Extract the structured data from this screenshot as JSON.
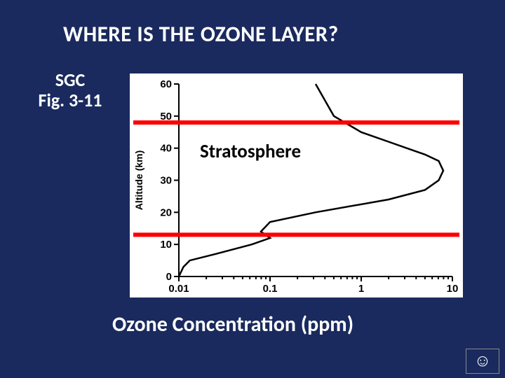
{
  "background_color": "#1a2a5e",
  "title": "WHERE IS THE OZONE LAYER?",
  "title_fontsize": 31,
  "caption": "SGC\nFig. 3-11",
  "caption_fontsize": 26,
  "subtitle": "Ozone Concentration (ppm)",
  "subtitle_fontsize": 30,
  "smiley": "☺",
  "smiley_box_border": "#888888",
  "chart": {
    "type": "line",
    "background_color": "#ffffff",
    "curve_color": "#000000",
    "curve_width": 2.5,
    "axis_color": "#000000",
    "axis_width": 2,
    "x_axis": {
      "scale": "log",
      "min": 0.01,
      "max": 10,
      "ticks": [
        0.01,
        0.1,
        1,
        10
      ],
      "tick_labels": [
        "0.01",
        "0.1",
        "1",
        "10"
      ]
    },
    "y_axis": {
      "label": "Altitude (km)",
      "label_fontsize": 14,
      "scale": "linear",
      "min": 0,
      "max": 60,
      "ticks": [
        0,
        10,
        20,
        30,
        40,
        50,
        60
      ],
      "tick_labels": [
        "0",
        "10",
        "20",
        "30",
        "40",
        "50",
        "60"
      ]
    },
    "curve_points": [
      {
        "x_log": -2.0,
        "y": 0
      },
      {
        "x_log": -1.95,
        "y": 3
      },
      {
        "x_log": -1.88,
        "y": 5
      },
      {
        "x_log": -1.6,
        "y": 7
      },
      {
        "x_log": -1.2,
        "y": 10
      },
      {
        "x_log": -1.0,
        "y": 12
      },
      {
        "x_log": -1.1,
        "y": 14
      },
      {
        "x_log": -1.0,
        "y": 17
      },
      {
        "x_log": -0.5,
        "y": 20
      },
      {
        "x_log": 0.3,
        "y": 24
      },
      {
        "x_log": 0.7,
        "y": 27
      },
      {
        "x_log": 0.85,
        "y": 30
      },
      {
        "x_log": 0.9,
        "y": 33
      },
      {
        "x_log": 0.85,
        "y": 36
      },
      {
        "x_log": 0.7,
        "y": 38
      },
      {
        "x_log": 0.5,
        "y": 40
      },
      {
        "x_log": 0.3,
        "y": 42
      },
      {
        "x_log": 0.0,
        "y": 45
      },
      {
        "x_log": -0.3,
        "y": 50
      },
      {
        "x_log": -0.4,
        "y": 55
      },
      {
        "x_log": -0.5,
        "y": 60
      }
    ],
    "stratosphere": {
      "label": "Stratosphere",
      "label_fontsize": 27,
      "label_color": "#000000",
      "line_color": "#ff0000",
      "line_width": 6,
      "lower_altitude_km": 13,
      "upper_altitude_km": 48
    }
  }
}
